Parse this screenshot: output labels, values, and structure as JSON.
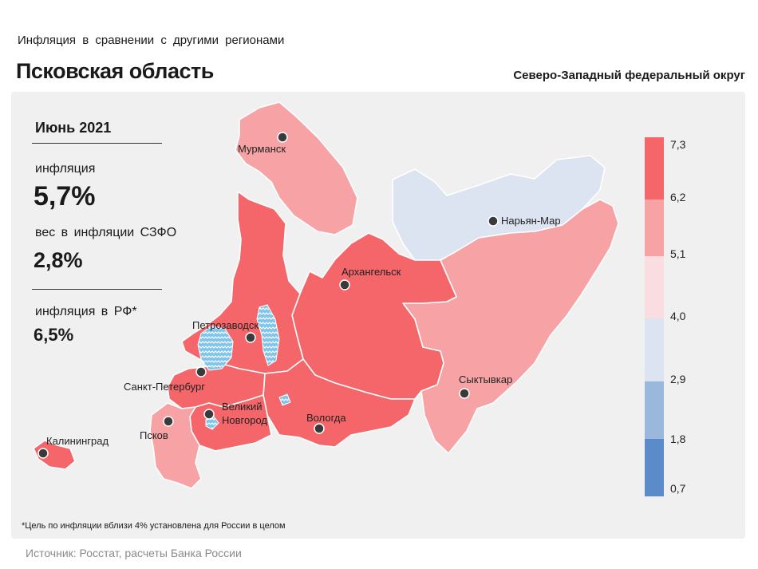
{
  "header": {
    "subtitle": "Инфляция в сравнении с другими регионами",
    "title": "Псковская область",
    "district": "Северо-Западный федеральный округ"
  },
  "panel": {
    "period": "Июнь 2021",
    "inflation_label": "инфляция",
    "inflation_value": "5,7%",
    "weight_label": "вес в инфляции СЗФО",
    "weight_value": "2,8%",
    "rf_label": "инфляция в РФ*",
    "rf_value": "6,5%"
  },
  "cities": {
    "murmansk": "Мурманск",
    "naryan_mar": "Нарьян-Мар",
    "arkhangelsk": "Архангельск",
    "petrozavodsk": "Петрозаводск",
    "spb": "Санкт-Петербург",
    "novgorod_1": "Великий",
    "novgorod_2": "Новгород",
    "vologda": "Вологда",
    "syktyvkar": "Сыктывкар",
    "pskov": "Псков",
    "kaliningrad": "Калининград"
  },
  "legend": {
    "ticks": [
      "7,3",
      "6,2",
      "5,1",
      "4,0",
      "2,9",
      "1,8",
      "0,7"
    ],
    "colors": [
      "#f4666a",
      "#f7a3a5",
      "#f9dde0",
      "#dce4f1",
      "#9ab7dc",
      "#5b8bc9"
    ]
  },
  "regions": {
    "murmansk": {
      "color": "#f7a3a5"
    },
    "karelia": {
      "color": "#f4666a"
    },
    "arkhangelsk": {
      "color": "#f4666a"
    },
    "nenets": {
      "color": "#dce4f1"
    },
    "komi": {
      "color": "#f7a3a5"
    },
    "vologda": {
      "color": "#f4666a"
    },
    "leningrad": {
      "color": "#f4666a"
    },
    "novgorod": {
      "color": "#f4666a"
    },
    "pskov": {
      "color": "#f7a3a5"
    },
    "kaliningrad": {
      "color": "#f4666a"
    }
  },
  "footnote": "*Цель по инфляции вблизи 4% установлена для России в целом",
  "source": "Источник: Росстат, расчеты Банка России"
}
